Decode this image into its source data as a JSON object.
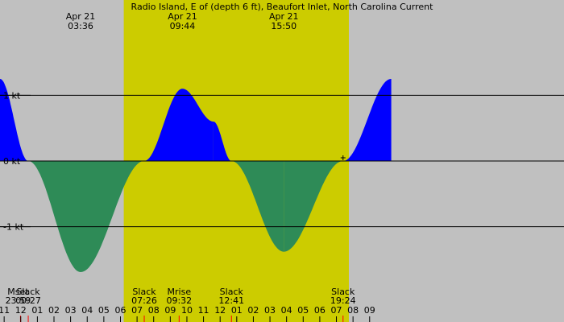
{
  "colors": {
    "background": "#c0c0c0",
    "daylight": "#cccc00",
    "flood": "#0000ff",
    "ebb": "#2e8b57",
    "line": "#000000",
    "marker": "#ff0000"
  },
  "chart_data": {
    "type": "area",
    "title": "Radio Island, E of (depth 6 ft), Beaufort Inlet, North Carolina Current",
    "ylim": [
      -2.45,
      2.45
    ],
    "xlim": [
      -1.25,
      32.7
    ],
    "y_gridlines": [
      {
        "value": 1,
        "label": "1 kt"
      },
      {
        "value": 0,
        "label": "0 kt"
      },
      {
        "value": -1,
        "label": "-1 kt"
      }
    ],
    "top_annotations": [
      {
        "x": 3.6,
        "date": "Apr 21",
        "time": "03:36"
      },
      {
        "x": 9.733,
        "date": "Apr 21",
        "time": "09:44"
      },
      {
        "x": 15.833,
        "date": "Apr 21",
        "time": "15:50"
      }
    ],
    "daylight_span": [
      6.2,
      19.75
    ],
    "current_points": [
      {
        "x": -1.25,
        "y": 1.25
      },
      {
        "x": 0.45,
        "y": 0
      },
      {
        "x": 3.6,
        "y": -1.69
      },
      {
        "x": 7.43,
        "y": 0
      },
      {
        "x": 9.733,
        "y": 1.1
      },
      {
        "x": 11.6,
        "y": 0.6
      },
      {
        "x": 12.68,
        "y": 0
      },
      {
        "x": 15.833,
        "y": -1.38
      },
      {
        "x": 19.4,
        "y": 0
      },
      {
        "x": 22.3,
        "y": 1.25
      }
    ],
    "events": [
      {
        "label": "Mset",
        "time": "23:59",
        "x": -0.017
      },
      {
        "label": "Slack",
        "time": "00:27",
        "x": 0.45
      },
      {
        "label": "Slack",
        "time": "07:26",
        "x": 7.433
      },
      {
        "label": "Mrise",
        "time": "09:32",
        "x": 9.533
      },
      {
        "label": "Slack",
        "time": "12:41",
        "x": 12.683
      },
      {
        "label": "Slack",
        "time": "19:24",
        "x": 19.4
      }
    ],
    "hour_ticks": [
      {
        "x": -1,
        "label": "11"
      },
      {
        "x": 0,
        "label": "12"
      },
      {
        "x": 1,
        "label": "01"
      },
      {
        "x": 2,
        "label": "02"
      },
      {
        "x": 3,
        "label": "03"
      },
      {
        "x": 4,
        "label": "04"
      },
      {
        "x": 5,
        "label": "05"
      },
      {
        "x": 6,
        "label": "06"
      },
      {
        "x": 7,
        "label": "07"
      },
      {
        "x": 8,
        "label": "08"
      },
      {
        "x": 9,
        "label": "09"
      },
      {
        "x": 10,
        "label": "10"
      },
      {
        "x": 11,
        "label": "11"
      },
      {
        "x": 12,
        "label": "12"
      },
      {
        "x": 13,
        "label": "01"
      },
      {
        "x": 14,
        "label": "02"
      },
      {
        "x": 15,
        "label": "03"
      },
      {
        "x": 16,
        "label": "04"
      },
      {
        "x": 17,
        "label": "05"
      },
      {
        "x": 18,
        "label": "06"
      },
      {
        "x": 19,
        "label": "07"
      },
      {
        "x": 20,
        "label": "08"
      },
      {
        "x": 21,
        "label": "09"
      }
    ]
  }
}
